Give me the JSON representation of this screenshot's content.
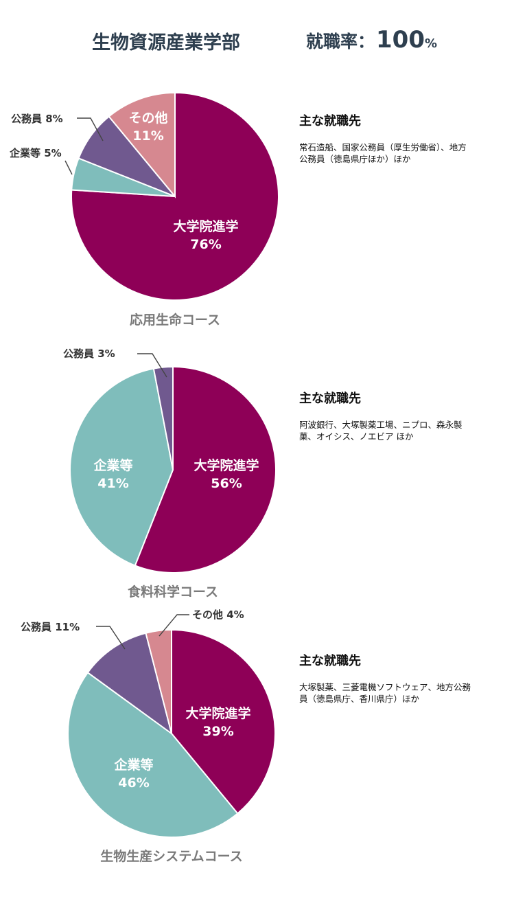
{
  "header": {
    "faculty": "生物資源産業学部",
    "rate_label": "就職率：",
    "rate_value": "100",
    "rate_unit": "%"
  },
  "colors": {
    "graduate": "#8e0057",
    "company": "#7fbdbb",
    "public": "#70598f",
    "other": "#d68890"
  },
  "chart_data": [
    {
      "type": "pie",
      "title": "応用生命コース",
      "slices": [
        {
          "label": "大学院進学",
          "value": 76,
          "color": "#8e0057"
        },
        {
          "label": "企業等",
          "value": 5,
          "color": "#7fbdbb"
        },
        {
          "label": "公務員",
          "value": 8,
          "color": "#70598f"
        },
        {
          "label": "その他",
          "value": 11,
          "color": "#d68890"
        }
      ],
      "employers_heading": "主な就職先",
      "employers_text": "常石造船、国家公務員（厚生労働省）、地方公務員（徳島県庁ほか）ほか"
    },
    {
      "type": "pie",
      "title": "食料科学コース",
      "slices": [
        {
          "label": "大学院進学",
          "value": 56,
          "color": "#8e0057"
        },
        {
          "label": "企業等",
          "value": 41,
          "color": "#7fbdbb"
        },
        {
          "label": "公務員",
          "value": 3,
          "color": "#70598f"
        }
      ],
      "employers_heading": "主な就職先",
      "employers_text": "阿波銀行、大塚製薬工場、ニプロ、森永製菓、オイシス、ノエビア ほか"
    },
    {
      "type": "pie",
      "title": "生物生産システムコース",
      "slices": [
        {
          "label": "大学院進学",
          "value": 39,
          "color": "#8e0057"
        },
        {
          "label": "企業等",
          "value": 46,
          "color": "#7fbdbb"
        },
        {
          "label": "公務員",
          "value": 11,
          "color": "#70598f"
        },
        {
          "label": "その他",
          "value": 4,
          "color": "#d68890"
        }
      ],
      "employers_heading": "主な就職先",
      "employers_text": "大塚製薬、三菱電機ソフトウェア、地方公務員（徳島県庁、香川県庁）ほか"
    }
  ]
}
